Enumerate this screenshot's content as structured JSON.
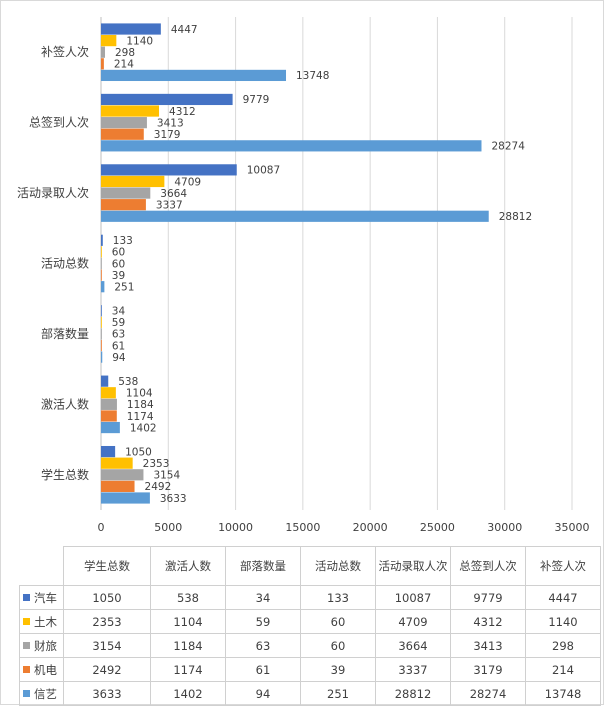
{
  "chart_data": {
    "type": "bar",
    "orientation": "horizontal",
    "categories": [
      "学生总数",
      "激活人数",
      "部落数量",
      "活动总数",
      "活动录取人次",
      "总签到人次",
      "补签人次"
    ],
    "series": [
      {
        "name": "汽车",
        "color": "#4472c4",
        "values": [
          1050,
          538,
          34,
          133,
          10087,
          9779,
          4447
        ]
      },
      {
        "name": "土木",
        "color": "#ffc000",
        "values": [
          2353,
          1104,
          59,
          60,
          4709,
          4312,
          1140
        ]
      },
      {
        "name": "财旅",
        "color": "#a5a5a5",
        "values": [
          3154,
          1184,
          63,
          60,
          3664,
          3413,
          298
        ]
      },
      {
        "name": "机电",
        "color": "#ed7d31",
        "values": [
          2492,
          1174,
          61,
          39,
          3337,
          3179,
          214
        ]
      },
      {
        "name": "信艺",
        "color": "#5b9bd5",
        "values": [
          3633,
          1402,
          94,
          251,
          28812,
          28274,
          13748
        ]
      }
    ],
    "xlim": [
      0,
      35000
    ],
    "x_ticks": [
      0,
      5000,
      10000,
      15000,
      20000,
      25000,
      30000,
      35000
    ],
    "grid": true,
    "data_labels": true,
    "legend": "data-table",
    "table": true
  }
}
